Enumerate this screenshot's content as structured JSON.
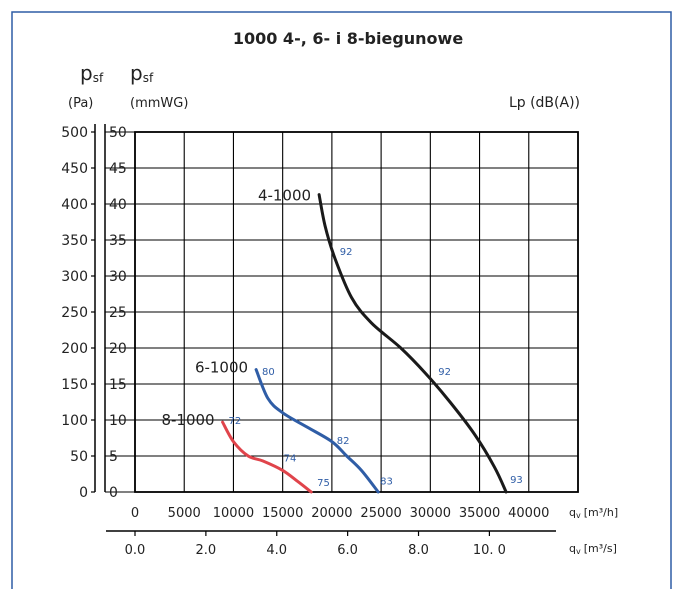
{
  "chart_data": {
    "type": "line",
    "title": "1000 4-, 6- i 8-biegunowe",
    "y_axes": [
      {
        "symbol": "p",
        "subscript": "sf",
        "unit": "(Pa)",
        "range": [
          0,
          500
        ],
        "ticks": [
          "0",
          "50",
          "100",
          "150",
          "200",
          "250",
          "300",
          "350",
          "400",
          "450",
          "500"
        ]
      },
      {
        "symbol": "p",
        "subscript": "sf",
        "unit": "(mmWG)",
        "range": [
          0,
          50
        ],
        "ticks": [
          "0",
          "5",
          "10",
          "15",
          "20",
          "25",
          "30",
          "35",
          "40",
          "45",
          "50"
        ]
      }
    ],
    "x_axes": [
      {
        "symbol": "q",
        "subscript": "v",
        "unit": "[m³/h]",
        "range": [
          0,
          45000
        ],
        "ticks": [
          "0",
          "5000",
          "10000",
          "15000",
          "20000",
          "25000",
          "30000",
          "35000",
          "40000"
        ]
      },
      {
        "symbol": "q",
        "subscript": "v",
        "unit": "[m³/s]",
        "range": [
          0,
          12.5
        ],
        "ticks": [
          "0.0",
          "2.0",
          "4.0",
          "6.0",
          "8.0",
          "10. 0"
        ]
      }
    ],
    "noise_label": "Lp (dB(A))",
    "grid": true,
    "series": [
      {
        "name": "4-1000",
        "color": "#1a1a1a",
        "points": [
          [
            18700,
            41.3
          ],
          [
            19300,
            37.0
          ],
          [
            20300,
            32.5
          ],
          [
            22000,
            27.0
          ],
          [
            24000,
            23.5
          ],
          [
            27000,
            20.0
          ],
          [
            29500,
            16.5
          ],
          [
            32000,
            12.5
          ],
          [
            34500,
            8.0
          ],
          [
            36500,
            3.5
          ],
          [
            37700,
            0.0
          ]
        ],
        "labels": [
          {
            "x": 20800,
            "y": 33.5,
            "text": "92"
          },
          {
            "x": 30800,
            "y": 16.8,
            "text": "92"
          },
          {
            "x": 38100,
            "y": 1.8,
            "text": "93"
          }
        ]
      },
      {
        "name": "6-1000",
        "color": "#2f5da6",
        "points": [
          [
            12300,
            17.0
          ],
          [
            13500,
            13.0
          ],
          [
            15000,
            11.0
          ],
          [
            17500,
            9.0
          ],
          [
            20000,
            7.0
          ],
          [
            21500,
            5.0
          ],
          [
            23000,
            3.0
          ],
          [
            24700,
            0.0
          ]
        ],
        "labels": [
          {
            "x": 12900,
            "y": 16.8,
            "text": "80"
          },
          {
            "x": 20500,
            "y": 7.2,
            "text": "82"
          },
          {
            "x": 24900,
            "y": 1.6,
            "text": "83"
          }
        ]
      },
      {
        "name": "8-1000",
        "color": "#e0444b",
        "points": [
          [
            8900,
            9.7
          ],
          [
            10000,
            7.0
          ],
          [
            11500,
            5.0
          ],
          [
            13000,
            4.3
          ],
          [
            15000,
            3.0
          ],
          [
            16500,
            1.5
          ],
          [
            17900,
            0.0
          ]
        ],
        "labels": [
          {
            "x": 9500,
            "y": 10.0,
            "text": "72"
          },
          {
            "x": 15100,
            "y": 4.8,
            "text": "74"
          },
          {
            "x": 18500,
            "y": 1.4,
            "text": "75"
          }
        ]
      }
    ]
  }
}
